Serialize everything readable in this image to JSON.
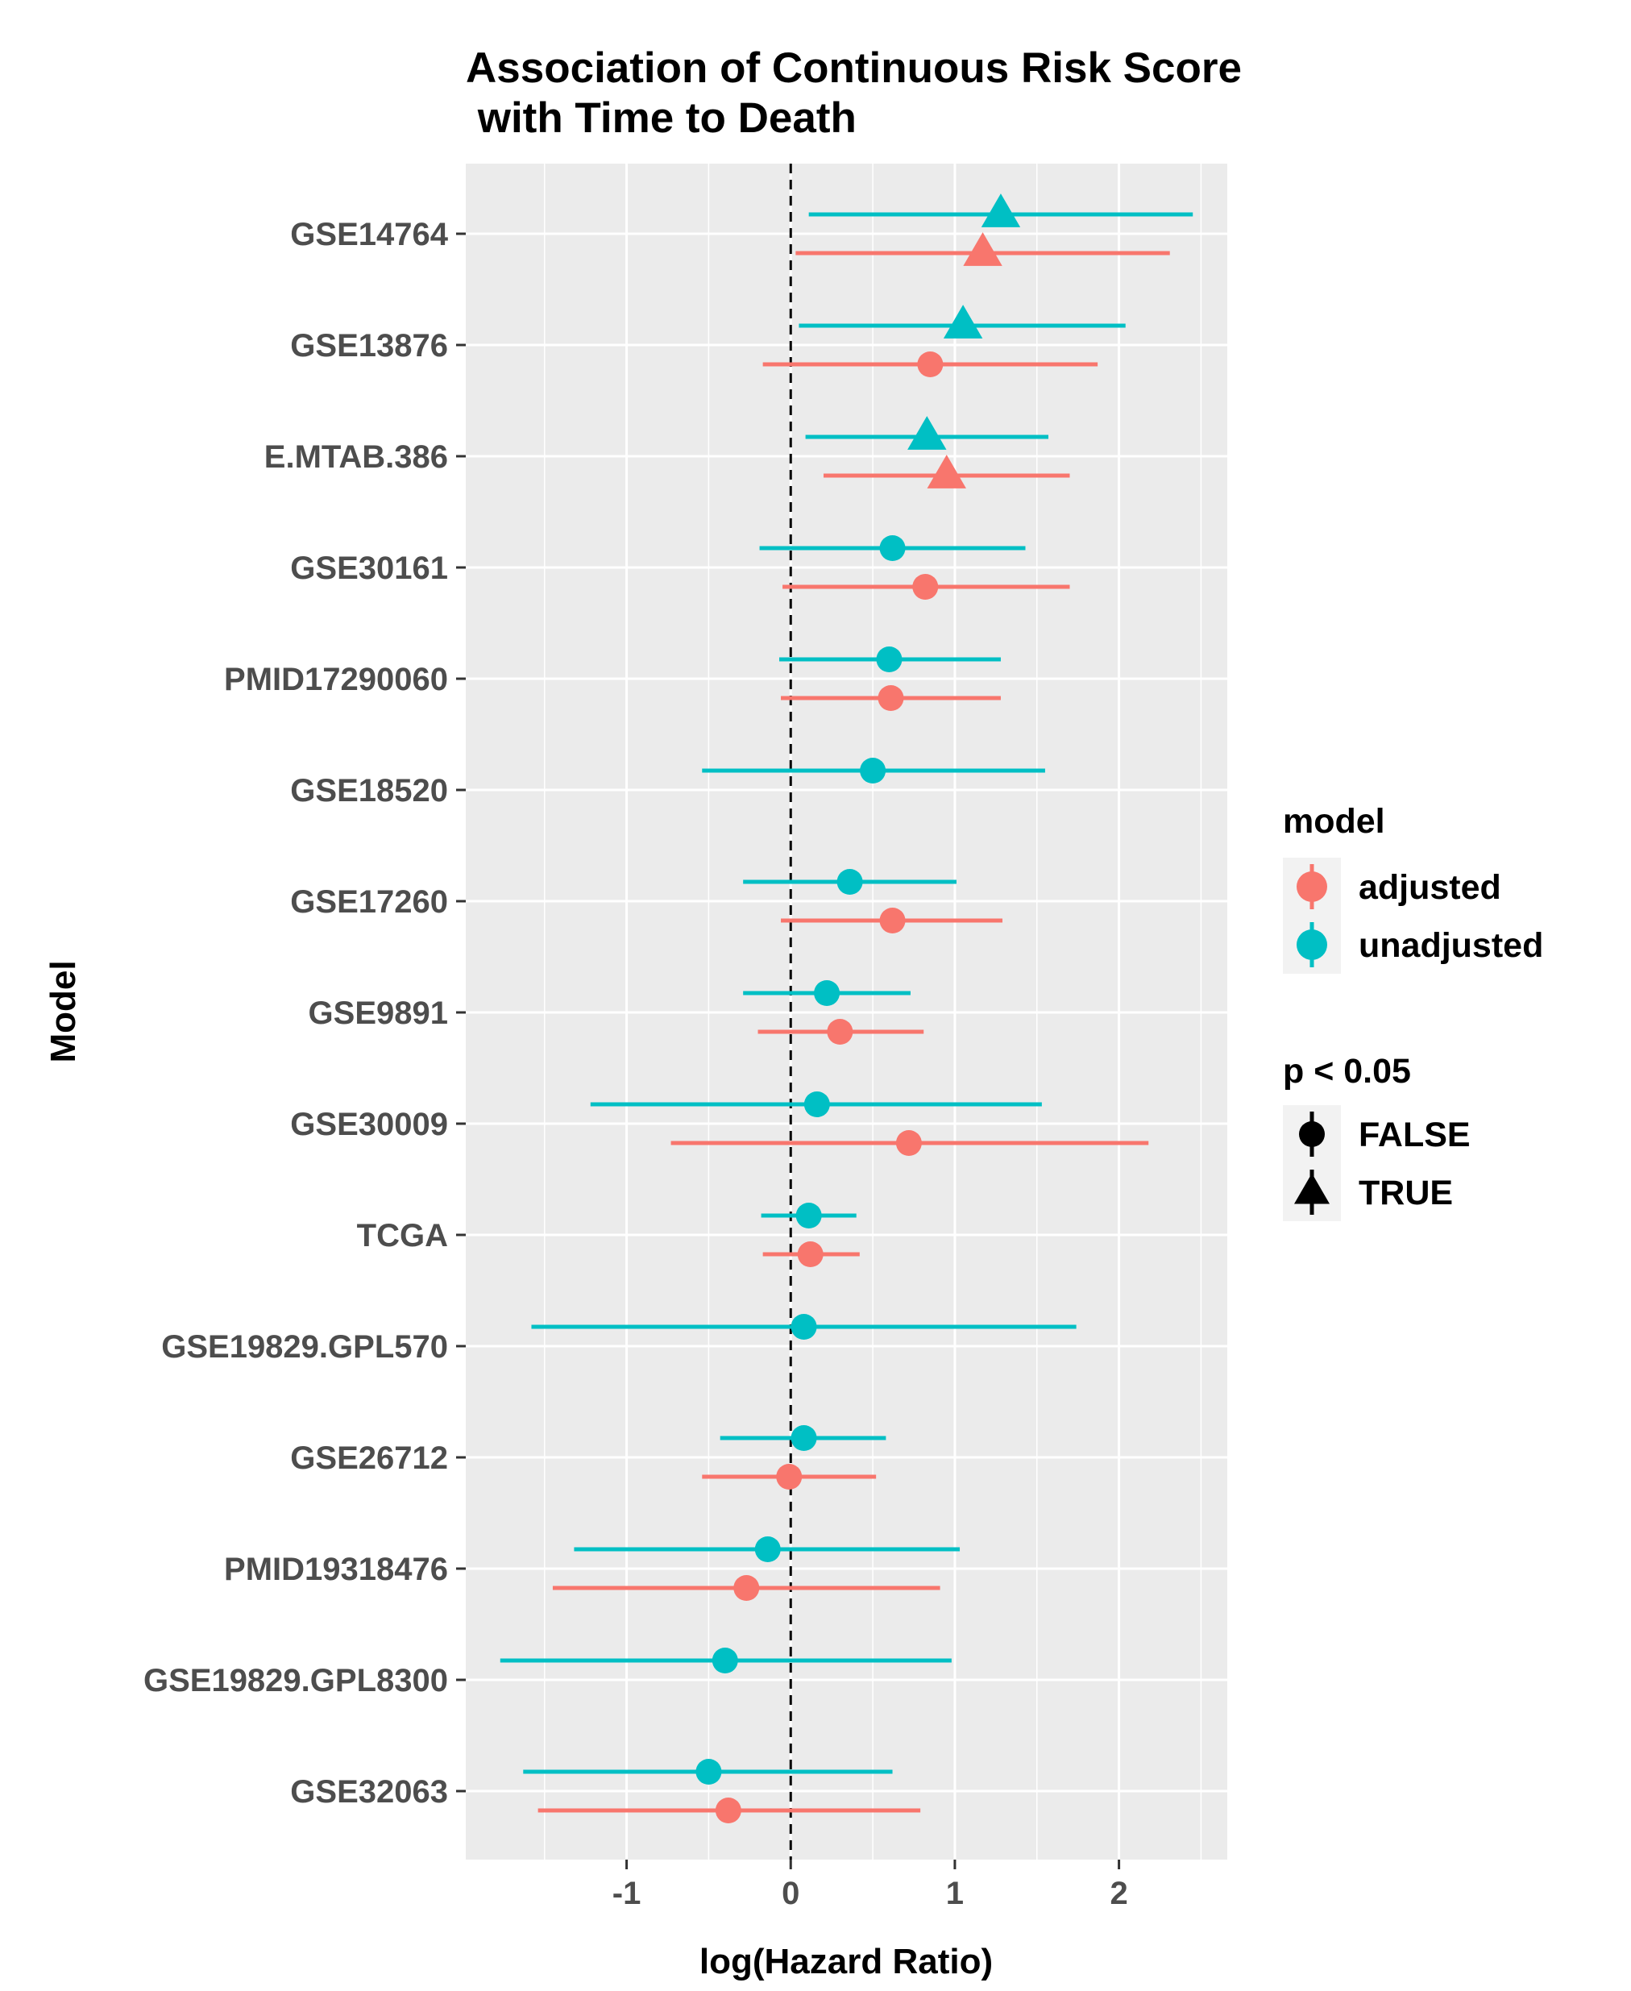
{
  "chart_data": {
    "type": "forest",
    "title_lines": [
      "Association of Continuous Risk Score",
      " with Time to Death"
    ],
    "xlabel": "log(Hazard Ratio)",
    "ylabel": "Model",
    "xlim": [
      -1.98,
      2.66
    ],
    "xticks": [
      -1,
      0,
      1,
      2
    ],
    "xtick_labels": [
      "-1",
      "0",
      "1",
      "2"
    ],
    "reference_line_x": 0,
    "grid": true,
    "categories": [
      "GSE14764",
      "GSE13876",
      "E.MTAB.386",
      "GSE30161",
      "PMID17290060",
      "GSE18520",
      "GSE17260",
      "GSE9891",
      "GSE30009",
      "TCGA",
      "GSE19829.GPL570",
      "GSE26712",
      "PMID19318476",
      "GSE19829.GPL8300",
      "GSE32063"
    ],
    "series": [
      {
        "name": "adjusted",
        "color": "#F8766D",
        "points": [
          {
            "category": "GSE14764",
            "estimate": 1.17,
            "lower": 0.03,
            "upper": 2.31,
            "significant": true
          },
          {
            "category": "GSE13876",
            "estimate": 0.85,
            "lower": -0.17,
            "upper": 1.87,
            "significant": false
          },
          {
            "category": "E.MTAB.386",
            "estimate": 0.95,
            "lower": 0.2,
            "upper": 1.7,
            "significant": true
          },
          {
            "category": "GSE30161",
            "estimate": 0.82,
            "lower": -0.05,
            "upper": 1.7,
            "significant": false
          },
          {
            "category": "PMID17290060",
            "estimate": 0.61,
            "lower": -0.06,
            "upper": 1.28,
            "significant": false
          },
          {
            "category": "GSE17260",
            "estimate": 0.62,
            "lower": -0.06,
            "upper": 1.29,
            "significant": false
          },
          {
            "category": "GSE9891",
            "estimate": 0.3,
            "lower": -0.2,
            "upper": 0.81,
            "significant": false
          },
          {
            "category": "GSE30009",
            "estimate": 0.72,
            "lower": -0.73,
            "upper": 2.18,
            "significant": false
          },
          {
            "category": "TCGA",
            "estimate": 0.12,
            "lower": -0.17,
            "upper": 0.42,
            "significant": false
          },
          {
            "category": "GSE26712",
            "estimate": -0.01,
            "lower": -0.54,
            "upper": 0.52,
            "significant": false
          },
          {
            "category": "PMID19318476",
            "estimate": -0.27,
            "lower": -1.45,
            "upper": 0.91,
            "significant": false
          },
          {
            "category": "GSE32063",
            "estimate": -0.38,
            "lower": -1.54,
            "upper": 0.79,
            "significant": false
          }
        ]
      },
      {
        "name": "unadjusted",
        "color": "#00BFC4",
        "points": [
          {
            "category": "GSE14764",
            "estimate": 1.28,
            "lower": 0.11,
            "upper": 2.45,
            "significant": true
          },
          {
            "category": "GSE13876",
            "estimate": 1.05,
            "lower": 0.05,
            "upper": 2.04,
            "significant": true
          },
          {
            "category": "E.MTAB.386",
            "estimate": 0.83,
            "lower": 0.09,
            "upper": 1.57,
            "significant": true
          },
          {
            "category": "GSE30161",
            "estimate": 0.62,
            "lower": -0.19,
            "upper": 1.43,
            "significant": false
          },
          {
            "category": "PMID17290060",
            "estimate": 0.6,
            "lower": -0.07,
            "upper": 1.28,
            "significant": false
          },
          {
            "category": "GSE18520",
            "estimate": 0.5,
            "lower": -0.54,
            "upper": 1.55,
            "significant": false
          },
          {
            "category": "GSE17260",
            "estimate": 0.36,
            "lower": -0.29,
            "upper": 1.01,
            "significant": false
          },
          {
            "category": "GSE9891",
            "estimate": 0.22,
            "lower": -0.29,
            "upper": 0.73,
            "significant": false
          },
          {
            "category": "GSE30009",
            "estimate": 0.16,
            "lower": -1.22,
            "upper": 1.53,
            "significant": false
          },
          {
            "category": "TCGA",
            "estimate": 0.11,
            "lower": -0.18,
            "upper": 0.4,
            "significant": false
          },
          {
            "category": "GSE19829.GPL570",
            "estimate": 0.08,
            "lower": -1.58,
            "upper": 1.74,
            "significant": false
          },
          {
            "category": "GSE26712",
            "estimate": 0.08,
            "lower": -0.43,
            "upper": 0.58,
            "significant": false
          },
          {
            "category": "PMID19318476",
            "estimate": -0.14,
            "lower": -1.32,
            "upper": 1.03,
            "significant": false
          },
          {
            "category": "GSE19829.GPL8300",
            "estimate": -0.4,
            "lower": -1.77,
            "upper": 0.98,
            "significant": false
          },
          {
            "category": "GSE32063",
            "estimate": -0.5,
            "lower": -1.63,
            "upper": 0.62,
            "significant": false
          }
        ]
      }
    ],
    "legend": {
      "placement": "right",
      "color_title": "model",
      "color_items": [
        {
          "label": "adjusted",
          "color": "#F8766D"
        },
        {
          "label": "unadjusted",
          "color": "#00BFC4"
        }
      ],
      "shape_title": "p < 0.05",
      "shape_items": [
        {
          "label": "FALSE",
          "shape": "circle"
        },
        {
          "label": "TRUE",
          "shape": "triangle"
        }
      ]
    }
  }
}
